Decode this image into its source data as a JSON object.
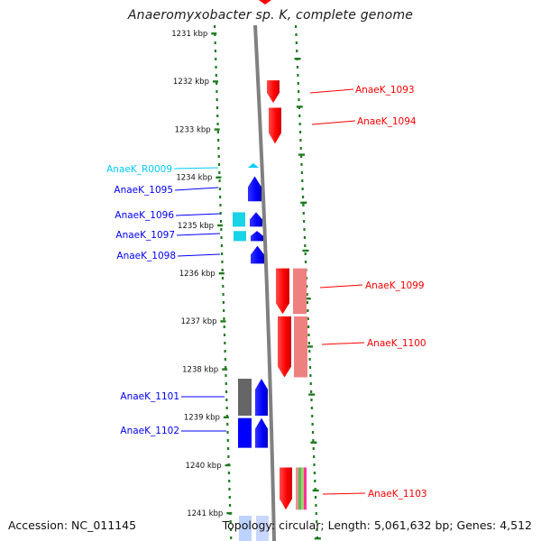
{
  "header": {
    "title": "Anaeromyxobacter sp. K, complete genome"
  },
  "footer": {
    "accession": "Accession: NC_011145",
    "summary": "Topology: circular; Length: 5,061,632 bp; Genes: 4,512"
  },
  "ruler": {
    "ticks": [
      {
        "kbp": 1231,
        "label": "1231 kbp"
      },
      {
        "kbp": 1232,
        "label": "1232 kbp"
      },
      {
        "kbp": 1233,
        "label": "1233 kbp"
      },
      {
        "kbp": 1234,
        "label": "1234 kbp"
      },
      {
        "kbp": 1235,
        "label": "1235 kbp"
      },
      {
        "kbp": 1236,
        "label": "1236 kbp"
      },
      {
        "kbp": 1237,
        "label": "1237 kbp"
      },
      {
        "kbp": 1238,
        "label": "1238 kbp"
      },
      {
        "kbp": 1239,
        "label": "1239 kbp"
      },
      {
        "kbp": 1240,
        "label": "1240 kbp"
      },
      {
        "kbp": 1241,
        "label": "1241 kbp"
      }
    ]
  },
  "genes": [
    {
      "id": "g1093",
      "label": "AnaeK_1093",
      "strand": "forward",
      "color": "#ff0000",
      "start_kbp": 1231.98,
      "end_kbp": 1232.45
    },
    {
      "id": "g1094",
      "label": "AnaeK_1094",
      "strand": "forward",
      "color": "#ff0000",
      "start_kbp": 1232.55,
      "end_kbp": 1233.3
    },
    {
      "id": "gR0009",
      "label": "AnaeK_R0009",
      "strand": "reverse",
      "color": "#00ccff",
      "start_kbp": 1233.8,
      "end_kbp": 1233.9
    },
    {
      "id": "g1095",
      "label": "AnaeK_1095",
      "strand": "reverse",
      "color": "#0000ff",
      "start_kbp": 1233.98,
      "end_kbp": 1234.5
    },
    {
      "id": "g1096",
      "label": "AnaeK_1096",
      "strand": "reverse",
      "color": "#0000ff",
      "start_kbp": 1234.73,
      "end_kbp": 1235.03
    },
    {
      "id": "g1097",
      "label": "AnaeK_1097",
      "strand": "reverse",
      "color": "#0000ff",
      "start_kbp": 1235.12,
      "end_kbp": 1235.33
    },
    {
      "id": "g1098",
      "label": "AnaeK_1098",
      "strand": "reverse",
      "color": "#0000ff",
      "start_kbp": 1235.43,
      "end_kbp": 1235.8
    },
    {
      "id": "g1099",
      "label": "AnaeK_1099",
      "strand": "forward",
      "color": "#ff0000",
      "start_kbp": 1235.9,
      "end_kbp": 1236.85
    },
    {
      "id": "g1100",
      "label": "AnaeK_1100",
      "strand": "forward",
      "color": "#ff0000",
      "start_kbp": 1236.9,
      "end_kbp": 1238.17
    },
    {
      "id": "g1101",
      "label": "AnaeK_1101",
      "strand": "reverse",
      "color": "#0000ff",
      "start_kbp": 1238.2,
      "end_kbp": 1238.97
    },
    {
      "id": "g1102",
      "label": "AnaeK_1102",
      "strand": "reverse",
      "color": "#0000ff",
      "start_kbp": 1239.02,
      "end_kbp": 1239.64
    },
    {
      "id": "g1103",
      "label": "AnaeK_1103",
      "strand": "forward",
      "color": "#ff0000",
      "start_kbp": 1240.05,
      "end_kbp": 1240.93
    }
  ],
  "colors": {
    "forward_gene": "#ff0000",
    "reverse_gene": "#0000ff",
    "rna_gene": "#00ccff",
    "ruler_tick": "#1f7a1f",
    "backbone": "#808080"
  }
}
